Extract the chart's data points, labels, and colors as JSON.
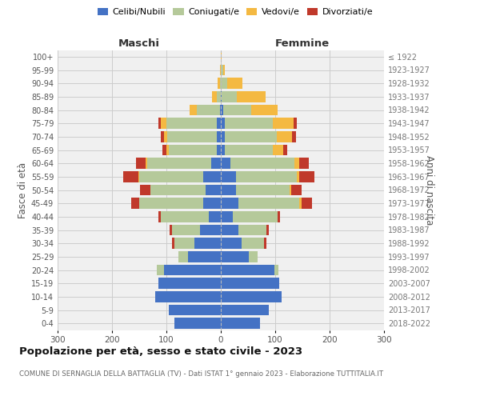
{
  "age_groups": [
    "0-4",
    "5-9",
    "10-14",
    "15-19",
    "20-24",
    "25-29",
    "30-34",
    "35-39",
    "40-44",
    "45-49",
    "50-54",
    "55-59",
    "60-64",
    "65-69",
    "70-74",
    "75-79",
    "80-84",
    "85-89",
    "90-94",
    "95-99",
    "100+"
  ],
  "birth_years": [
    "2018-2022",
    "2013-2017",
    "2008-2012",
    "2003-2007",
    "1998-2002",
    "1993-1997",
    "1988-1992",
    "1983-1987",
    "1978-1982",
    "1973-1977",
    "1968-1972",
    "1963-1967",
    "1958-1962",
    "1953-1957",
    "1948-1952",
    "1943-1947",
    "1938-1942",
    "1933-1937",
    "1928-1932",
    "1923-1927",
    "≤ 1922"
  ],
  "maschi": {
    "celibi": [
      85,
      95,
      120,
      115,
      105,
      60,
      48,
      38,
      22,
      32,
      28,
      32,
      18,
      8,
      7,
      8,
      2,
      0,
      0,
      0,
      0
    ],
    "coniugati": [
      0,
      0,
      0,
      0,
      12,
      18,
      38,
      52,
      88,
      118,
      102,
      118,
      118,
      88,
      92,
      92,
      42,
      8,
      2,
      0,
      0
    ],
    "vedovi": [
      0,
      0,
      0,
      0,
      0,
      0,
      0,
      0,
      0,
      0,
      0,
      2,
      2,
      4,
      6,
      10,
      14,
      8,
      4,
      1,
      0
    ],
    "divorziati": [
      0,
      0,
      0,
      0,
      0,
      0,
      4,
      4,
      5,
      14,
      18,
      28,
      18,
      7,
      5,
      5,
      0,
      0,
      0,
      0,
      0
    ]
  },
  "femmine": {
    "nubili": [
      72,
      88,
      112,
      108,
      98,
      52,
      38,
      32,
      22,
      32,
      28,
      28,
      18,
      8,
      8,
      8,
      4,
      2,
      0,
      0,
      0
    ],
    "coniugate": [
      0,
      0,
      0,
      0,
      8,
      16,
      42,
      52,
      82,
      112,
      98,
      112,
      118,
      88,
      95,
      88,
      52,
      28,
      12,
      4,
      0
    ],
    "vedove": [
      0,
      0,
      0,
      0,
      0,
      0,
      0,
      0,
      0,
      4,
      4,
      4,
      8,
      18,
      28,
      38,
      48,
      52,
      28,
      4,
      2
    ],
    "divorziate": [
      0,
      0,
      0,
      0,
      0,
      0,
      4,
      4,
      5,
      20,
      18,
      28,
      18,
      8,
      7,
      5,
      0,
      0,
      0,
      0,
      0
    ]
  },
  "colors": {
    "celibi": "#4472c4",
    "coniugati": "#b5c99a",
    "vedovi": "#f4b942",
    "divorziati": "#c0392b"
  },
  "xlim": 300,
  "title": "Popolazione per età, sesso e stato civile - 2023",
  "subtitle": "COMUNE DI SERNAGLIA DELLA BATTAGLIA (TV) - Dati ISTAT 1° gennaio 2023 - Elaborazione TUTTITALIA.IT",
  "ylabel_left": "Fasce di età",
  "ylabel_right": "Anni di nascita",
  "xlabel_left": "Maschi",
  "xlabel_right": "Femmine",
  "bg_color": "#f0f0f0",
  "grid_color": "#cccccc"
}
